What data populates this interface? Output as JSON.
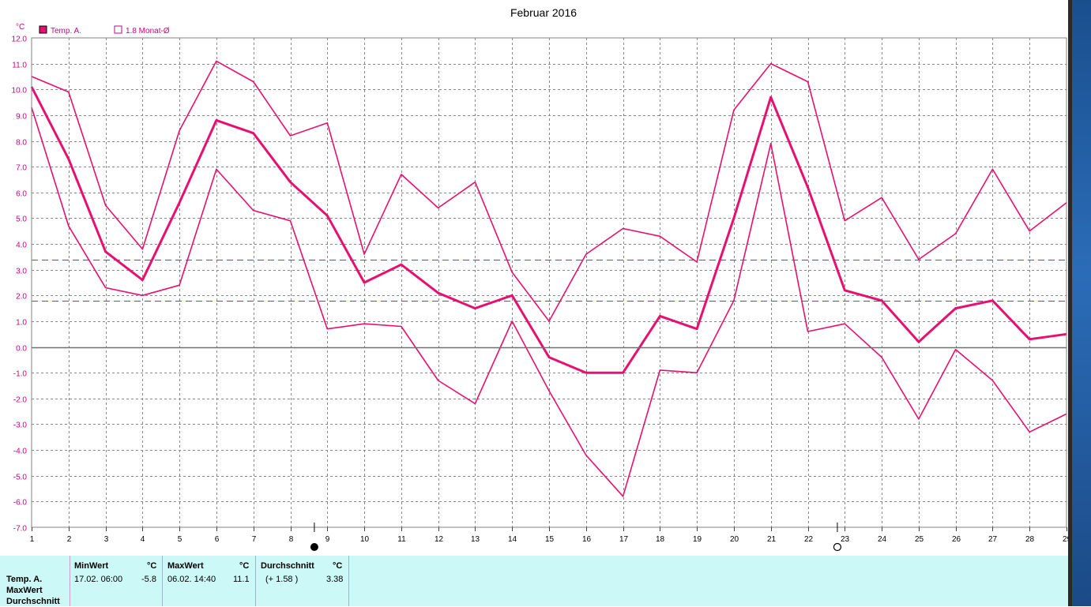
{
  "chart_data": {
    "type": "line",
    "title": "Februar 2016",
    "ylabel": "°C",
    "xlabel": "",
    "ylim": [
      -7.0,
      12.0
    ],
    "xlim": [
      1,
      29
    ],
    "yticks": [
      "12.0",
      "11.0",
      "10.0",
      "9.0",
      "8.0",
      "7.0",
      "6.0",
      "5.0",
      "4.0",
      "3.0",
      "2.0",
      "1.0",
      "0.0",
      "-1.0",
      "-2.0",
      "-3.0",
      "-4.0",
      "-5.0",
      "-6.0",
      "-7.0"
    ],
    "x": [
      1,
      2,
      3,
      4,
      5,
      6,
      7,
      8,
      9,
      10,
      11,
      12,
      13,
      14,
      15,
      16,
      17,
      18,
      19,
      20,
      21,
      22,
      23,
      24,
      25,
      26,
      27,
      28,
      29
    ],
    "grid": true,
    "legend": [
      {
        "label": "Temp. A.",
        "filled": true
      },
      {
        "label": "1.8 Monat-Ø",
        "filled": false
      }
    ],
    "series": [
      {
        "name": "",
        "role": "max",
        "values": [
          10.5,
          9.9,
          5.5,
          3.8,
          8.4,
          11.1,
          10.3,
          8.2,
          8.7,
          3.6,
          6.7,
          5.4,
          6.4,
          2.9,
          1.0,
          3.6,
          4.6,
          4.3,
          3.3,
          9.2,
          11.0,
          10.3,
          4.9,
          5.8,
          3.4,
          4.4,
          6.9,
          4.5,
          5.6
        ]
      },
      {
        "name": "",
        "role": "mean",
        "values": [
          10.1,
          7.3,
          3.7,
          2.6,
          5.6,
          8.8,
          8.3,
          6.4,
          5.1,
          2.5,
          3.2,
          2.1,
          1.5,
          2.0,
          -0.4,
          -1.0,
          -1.0,
          1.2,
          0.7,
          5.0,
          9.7,
          6.2,
          2.2,
          1.8,
          0.2,
          1.5,
          1.8,
          0.3,
          0.5
        ]
      },
      {
        "name": "",
        "role": "min",
        "values": [
          9.3,
          4.7,
          2.3,
          2.0,
          2.4,
          6.9,
          5.3,
          4.9,
          0.7,
          0.9,
          0.8,
          -1.3,
          -2.2,
          1.0,
          -1.7,
          -4.2,
          -5.8,
          -0.9,
          -1.0,
          1.8,
          7.9,
          0.6,
          0.9,
          -0.4,
          -2.8,
          -0.1,
          -1.3,
          -3.3,
          -2.6
        ]
      }
    ],
    "reference_lines": [
      3.38,
      1.8
    ],
    "moon_phases": [
      {
        "x": 8.65,
        "phase": "new"
      },
      {
        "x": 22.8,
        "phase": "full"
      }
    ],
    "colors": {
      "series": "#e8106e",
      "reference": "#d81890",
      "grid": "#888888",
      "legend_text": "#d00080"
    }
  },
  "stats": {
    "row_labels": [
      "Temp. A.",
      "MaxWert",
      "Durchschnitt"
    ],
    "min": {
      "header": "MinWert",
      "unit": "°C",
      "when": "17.02.  06:00",
      "value": "-5.8"
    },
    "max": {
      "header": "MaxWert",
      "unit": "°C",
      "when": "06.02.  14:40",
      "value": "11.1"
    },
    "avg": {
      "header": "Durchschnitt",
      "unit": "°C",
      "when": "(+ 1.58 )",
      "value": "3.38"
    }
  }
}
